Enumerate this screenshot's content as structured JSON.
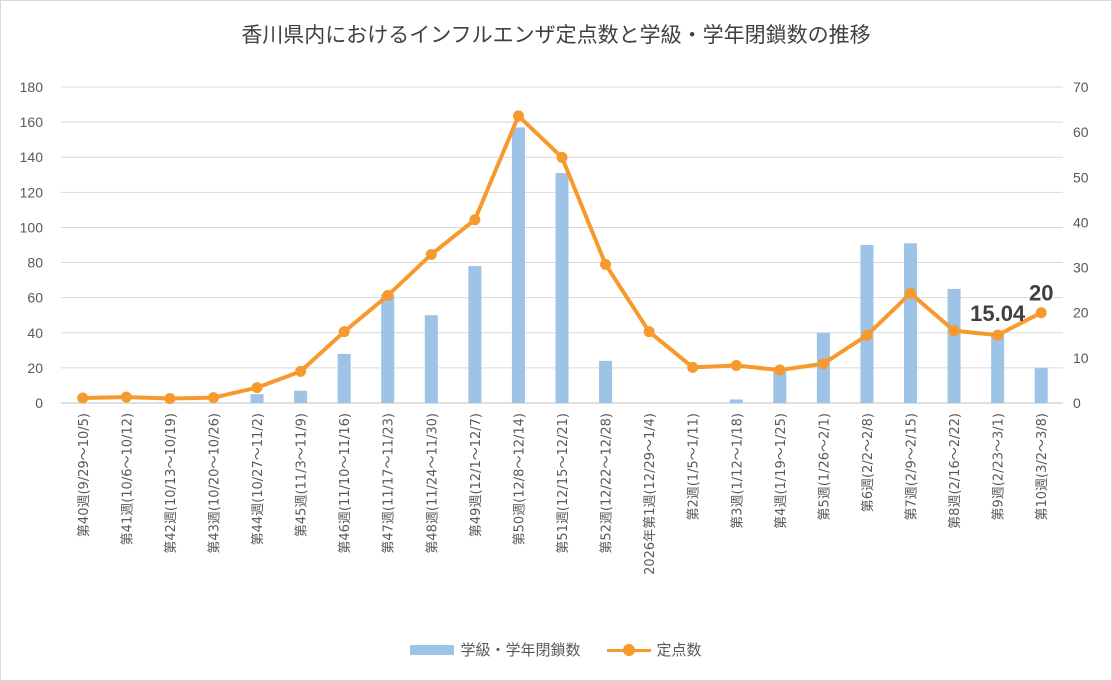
{
  "chart_data": {
    "type": "bar+line",
    "title": "香川県内におけるインフルエンザ定点数と学級・学年閉鎖数の推移",
    "categories": [
      "第40週(9/29～10/5)",
      "第41週(10/6～10/12)",
      "第42週(10/13～10/19)",
      "第43週(10/20～10/26)",
      "第44週(10/27～11/2)",
      "第45週(11/3～11/9)",
      "第46週(11/10～11/16)",
      "第47週(11/17～11/23)",
      "第48週(11/24～11/30)",
      "第49週(12/1～12/7)",
      "第50週(12/8～12/14)",
      "第51週(12/15～12/21)",
      "第52週(12/22～12/28)",
      "2026年第1週(12/29～1/4)",
      "第2週(1/5～1/11)",
      "第3週(1/12～1/18)",
      "第4週(1/19～1/25)",
      "第5週(1/26～2/1)",
      "第6週(2/2～2/8)",
      "第7週(2/9～2/15)",
      "第8週(2/16～2/22)",
      "第9週(2/23～3/1)",
      "第10週(3/2～3/8)"
    ],
    "series": [
      {
        "name": "学級・学年閉鎖数",
        "type": "bar",
        "axis": "left",
        "color": "#9dc3e6",
        "values": [
          0,
          0,
          0,
          0,
          5,
          7,
          28,
          62,
          50,
          78,
          157,
          131,
          24,
          0,
          0,
          2,
          20,
          40,
          90,
          91,
          65,
          40,
          20
        ]
      },
      {
        "name": "定点数",
        "type": "line",
        "axis": "right",
        "color": "#f79a2e",
        "values": [
          1.1,
          1.3,
          1.0,
          1.2,
          3.4,
          7.0,
          15.8,
          23.8,
          32.9,
          40.6,
          63.6,
          54.4,
          30.7,
          15.8,
          7.9,
          8.3,
          7.3,
          8.7,
          15.0,
          24.3,
          16.0,
          15.04,
          20
        ]
      }
    ],
    "y_left": {
      "min": 0,
      "max": 180,
      "ticks": [
        0,
        20,
        40,
        60,
        80,
        100,
        120,
        140,
        160,
        180
      ]
    },
    "y_right": {
      "min": 0,
      "max": 70,
      "ticks": [
        0,
        10,
        20,
        30,
        40,
        50,
        60,
        70
      ]
    },
    "data_labels": [
      {
        "text": "15.04",
        "category_index": 21
      },
      {
        "text": "20",
        "category_index": 22
      }
    ],
    "grid": "horizontal",
    "legend_position": "bottom"
  }
}
